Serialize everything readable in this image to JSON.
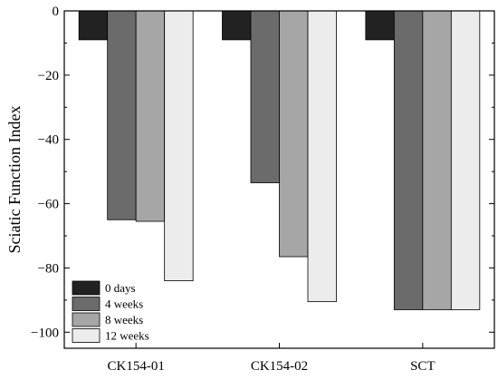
{
  "chart_data": {
    "type": "bar",
    "title": "",
    "xlabel": "",
    "ylabel": "Sciatic Function Index",
    "ylim": [
      -105,
      0
    ],
    "yticks": [
      0,
      -20,
      -40,
      -60,
      -80,
      -100
    ],
    "ytick_labels": [
      "0",
      "−20",
      "−40",
      "−60",
      "−80",
      "−100"
    ],
    "categories": [
      "CK154-01",
      "CK154-02",
      "SCT"
    ],
    "series": [
      {
        "name": "0 days",
        "color": "#222222",
        "values": [
          -9,
          -9,
          -9
        ]
      },
      {
        "name": "4 weeks",
        "color": "#6b6b6b",
        "values": [
          -65,
          -53.5,
          -93
        ]
      },
      {
        "name": "8 weeks",
        "color": "#a6a6a6",
        "values": [
          -65.5,
          -76.5,
          -93
        ]
      },
      {
        "name": "12 weeks",
        "color": "#ececec",
        "values": [
          -84,
          -90.5,
          -93
        ]
      }
    ],
    "grid": false,
    "legend_position": "bottom-left"
  }
}
